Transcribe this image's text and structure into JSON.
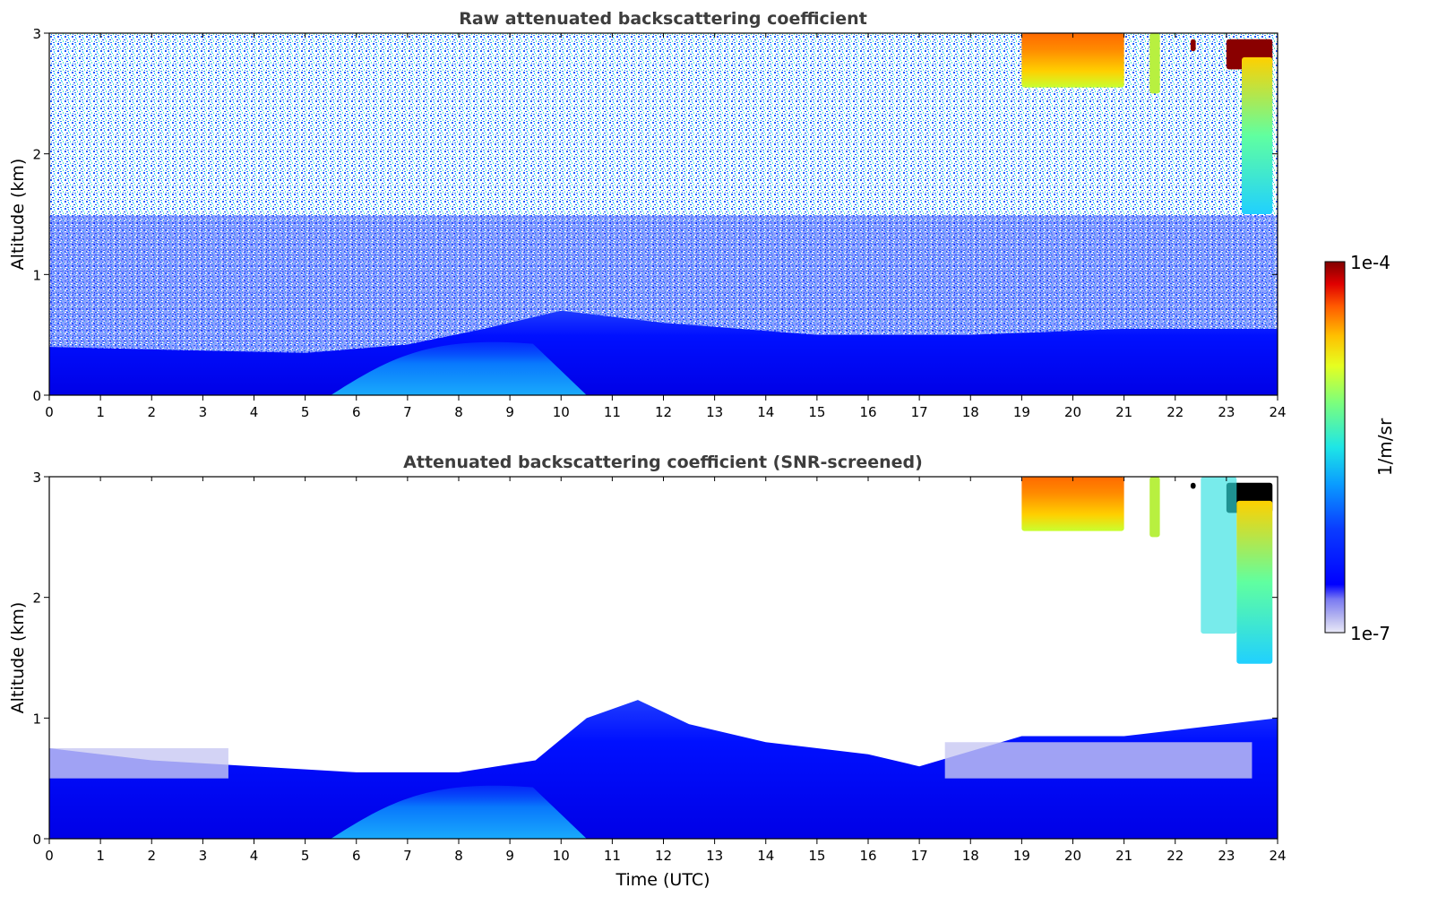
{
  "figure": {
    "colorbar": {
      "label": "1/m/sr",
      "max_label": "1e-4",
      "min_label": "1e-7",
      "vmin": 1e-07,
      "vmax": 0.0001,
      "scale": "log",
      "colormap": "jet with pale-lavender low end",
      "low_colors": [
        "#eaeaf8",
        "#c8c8f0",
        "#a0a0ec",
        "#7a7af0"
      ]
    },
    "xlabel": "Time (UTC)"
  },
  "chart_data": [
    {
      "type": "heatmap",
      "title": "Raw attenuated backscattering coefficient",
      "xlabel": "",
      "ylabel": "Altitude (km)",
      "xlim": [
        0,
        24
      ],
      "ylim": [
        0,
        3
      ],
      "xticks": [
        "0",
        "1",
        "2",
        "3",
        "4",
        "5",
        "6",
        "7",
        "8",
        "9",
        "10",
        "11",
        "12",
        "13",
        "14",
        "15",
        "16",
        "17",
        "18",
        "19",
        "20",
        "21",
        "22",
        "23",
        "24"
      ],
      "yticks": [
        "0",
        "1",
        "2",
        "3"
      ],
      "background_noise": "speckled blue/cyan/white noise above boundary layer, increasing toward top",
      "boundary_layer_top_km": [
        {
          "t": 0,
          "z": 0.4
        },
        {
          "t": 2,
          "z": 0.38
        },
        {
          "t": 5,
          "z": 0.35
        },
        {
          "t": 7,
          "z": 0.42
        },
        {
          "t": 8.5,
          "z": 0.55
        },
        {
          "t": 10,
          "z": 0.7
        },
        {
          "t": 12,
          "z": 0.6
        },
        {
          "t": 15,
          "z": 0.5
        },
        {
          "t": 18,
          "z": 0.5
        },
        {
          "t": 21,
          "z": 0.55
        },
        {
          "t": 24,
          "z": 0.55
        }
      ],
      "cyan_aerosol_region": {
        "t_start": 5.5,
        "t_end": 10.5,
        "z_max_km": 0.5
      },
      "clouds": [
        {
          "t_start": 19.0,
          "t_end": 21.0,
          "z_base_km": 2.55,
          "z_top_km": 3.0,
          "color": "orange"
        },
        {
          "t_start": 21.5,
          "t_end": 21.7,
          "z_base_km": 2.5,
          "z_top_km": 3.0,
          "color": "yellow-green"
        },
        {
          "t_start": 22.3,
          "t_end": 22.4,
          "z_base_km": 2.85,
          "z_top_km": 2.95,
          "color": "dark red"
        },
        {
          "t_start": 23.0,
          "t_end": 23.9,
          "z_base_km": 2.7,
          "z_top_km": 2.95,
          "color": "dark red"
        },
        {
          "t_start": 23.3,
          "t_end": 23.9,
          "z_base_km": 1.5,
          "z_top_km": 2.8,
          "color": "cyan-yellow fall streak"
        }
      ]
    },
    {
      "type": "heatmap",
      "title": "Attenuated backscattering coefficient (SNR-screened)",
      "xlabel": "Time (UTC)",
      "ylabel": "Altitude (km)",
      "xlim": [
        0,
        24
      ],
      "ylim": [
        0,
        3
      ],
      "xticks": [
        "0",
        "1",
        "2",
        "3",
        "4",
        "5",
        "6",
        "7",
        "8",
        "9",
        "10",
        "11",
        "12",
        "13",
        "14",
        "15",
        "16",
        "17",
        "18",
        "19",
        "20",
        "21",
        "22",
        "23",
        "24"
      ],
      "yticks": [
        "0",
        "1",
        "2",
        "3"
      ],
      "screened_top_km": [
        {
          "t": 0,
          "z": 0.75
        },
        {
          "t": 2,
          "z": 0.65
        },
        {
          "t": 4,
          "z": 0.6
        },
        {
          "t": 6,
          "z": 0.55
        },
        {
          "t": 8,
          "z": 0.55
        },
        {
          "t": 9.5,
          "z": 0.65
        },
        {
          "t": 10.5,
          "z": 1.0
        },
        {
          "t": 11.5,
          "z": 1.15
        },
        {
          "t": 12.5,
          "z": 0.95
        },
        {
          "t": 14,
          "z": 0.8
        },
        {
          "t": 16,
          "z": 0.7
        },
        {
          "t": 17,
          "z": 0.6
        },
        {
          "t": 19,
          "z": 0.85
        },
        {
          "t": 21,
          "z": 0.85
        },
        {
          "t": 23,
          "z": 0.95
        },
        {
          "t": 24,
          "z": 1.0
        }
      ],
      "pale_layer": [
        {
          "t_start": 0,
          "t_end": 3.5,
          "z_low_km": 0.5,
          "z_high_km": 0.75
        },
        {
          "t_start": 17.5,
          "t_end": 23.5,
          "z_low_km": 0.5,
          "z_high_km": 0.8
        }
      ],
      "cyan_aerosol_region": {
        "t_start": 5.5,
        "t_end": 10.5,
        "z_max_km": 0.5
      },
      "clouds": [
        {
          "t_start": 19.0,
          "t_end": 21.0,
          "z_base_km": 2.55,
          "z_top_km": 3.0,
          "color": "orange"
        },
        {
          "t_start": 21.5,
          "t_end": 21.7,
          "z_base_km": 2.5,
          "z_top_km": 3.0,
          "color": "yellow-green"
        },
        {
          "t_start": 22.3,
          "t_end": 22.4,
          "z_base_km": 2.9,
          "z_top_km": 2.95,
          "color": "black"
        },
        {
          "t_start": 23.0,
          "t_end": 23.9,
          "z_base_km": 2.7,
          "z_top_km": 2.95,
          "color": "black"
        },
        {
          "t_start": 22.5,
          "t_end": 23.2,
          "z_base_km": 1.7,
          "z_top_km": 3.0,
          "color": "cyan speckle"
        },
        {
          "t_start": 23.2,
          "t_end": 23.9,
          "z_base_km": 1.45,
          "z_top_km": 2.8,
          "color": "cyan-yellow fall streak"
        }
      ]
    }
  ]
}
